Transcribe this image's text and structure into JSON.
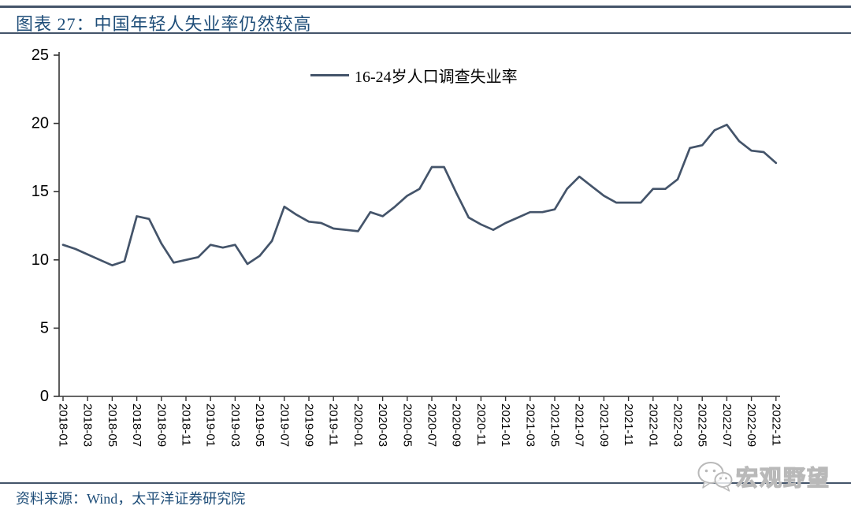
{
  "header": {
    "title": "图表 27：中国年轻人失业率仍然较高"
  },
  "footer": {
    "source": "资料来源：Wind，太平洋证券研究院",
    "watermark": "宏观野望"
  },
  "colors": {
    "line": "#44546A",
    "title_text": "#1F4E79",
    "axis": "#333333",
    "tick_text": "#000000",
    "watermark_gray": "#b9b9b9"
  },
  "chart_data": {
    "type": "line",
    "title": "",
    "legend": "16-24岁人口调查失业率",
    "legend_position": "top-center",
    "grid": false,
    "xlabel": "",
    "ylabel": "",
    "ylim": [
      0,
      25
    ],
    "yticks": [
      0,
      5,
      10,
      15,
      20,
      25
    ],
    "x_tick_labels": [
      "2018-01",
      "2018-03",
      "2018-05",
      "2018-07",
      "2018-09",
      "2018-11",
      "2019-01",
      "2019-03",
      "2019-05",
      "2019-07",
      "2019-09",
      "2019-11",
      "2020-01",
      "2020-03",
      "2020-05",
      "2020-07",
      "2020-09",
      "2020-11",
      "2021-01",
      "2021-03",
      "2021-05",
      "2021-07",
      "2021-09",
      "2021-11",
      "2022-01",
      "2022-03",
      "2022-05",
      "2022-07",
      "2022-09",
      "2022-11"
    ],
    "x": [
      "2018-01",
      "2018-02",
      "2018-03",
      "2018-04",
      "2018-05",
      "2018-06",
      "2018-07",
      "2018-08",
      "2018-09",
      "2018-10",
      "2018-11",
      "2018-12",
      "2019-01",
      "2019-02",
      "2019-03",
      "2019-04",
      "2019-05",
      "2019-06",
      "2019-07",
      "2019-08",
      "2019-09",
      "2019-10",
      "2019-11",
      "2019-12",
      "2020-01",
      "2020-02",
      "2020-03",
      "2020-04",
      "2020-05",
      "2020-06",
      "2020-07",
      "2020-08",
      "2020-09",
      "2020-10",
      "2020-11",
      "2020-12",
      "2021-01",
      "2021-02",
      "2021-03",
      "2021-04",
      "2021-05",
      "2021-06",
      "2021-07",
      "2021-08",
      "2021-09",
      "2021-10",
      "2021-11",
      "2021-12",
      "2022-01",
      "2022-02",
      "2022-03",
      "2022-04",
      "2022-05",
      "2022-06",
      "2022-07",
      "2022-08",
      "2022-09",
      "2022-10",
      "2022-11"
    ],
    "series": [
      {
        "name": "16-24岁人口调查失业率",
        "values": [
          11.1,
          10.8,
          10.4,
          10.0,
          9.6,
          9.9,
          13.2,
          13.0,
          11.2,
          9.8,
          10.0,
          10.2,
          11.1,
          10.9,
          11.1,
          9.7,
          10.3,
          11.4,
          13.9,
          13.3,
          12.8,
          12.7,
          12.3,
          12.2,
          12.1,
          13.5,
          13.2,
          13.9,
          14.7,
          15.2,
          16.8,
          16.8,
          14.9,
          13.1,
          12.6,
          12.2,
          12.7,
          13.1,
          13.5,
          13.5,
          13.7,
          15.2,
          16.1,
          15.4,
          14.7,
          14.2,
          14.2,
          14.2,
          15.2,
          15.2,
          15.9,
          18.2,
          18.4,
          19.5,
          19.9,
          18.7,
          18.0,
          17.9,
          17.1
        ]
      }
    ]
  }
}
